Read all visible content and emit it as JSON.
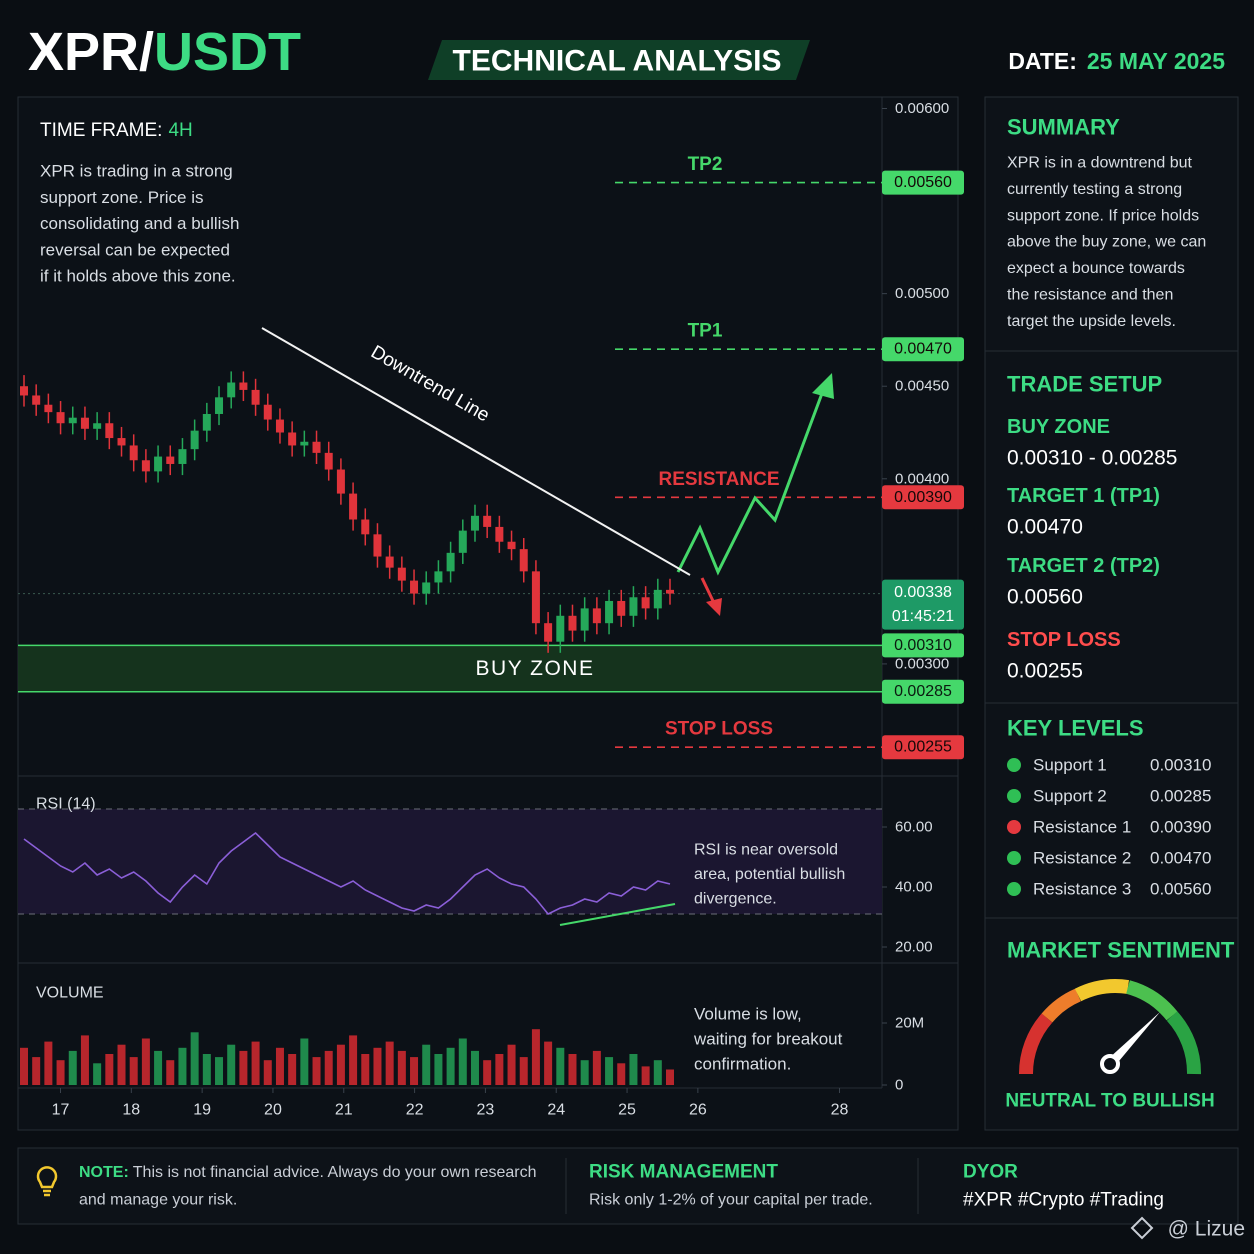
{
  "header": {
    "title_base": "XPR/",
    "title_quote": "USDT",
    "badge": "TECHNICAL ANALYSIS",
    "date_label": "DATE:",
    "date": "25 MAY 2025"
  },
  "info": {
    "timeframe_label": "TIME FRAME:",
    "timeframe": "4H",
    "lines": [
      "XPR is trading in a strong",
      "support zone. Price is",
      "consolidating and a bullish",
      "reversal can be expected",
      "if it holds above this zone."
    ]
  },
  "chart_data": [
    {
      "type": "candlestick",
      "open": [
        0.0045,
        0.00445,
        0.0044,
        0.00436,
        0.0043,
        0.00433,
        0.00427,
        0.0043,
        0.00422,
        0.00418,
        0.0041,
        0.00404,
        0.00412,
        0.00408,
        0.00416,
        0.00426,
        0.00435,
        0.00444,
        0.00452,
        0.00448,
        0.0044,
        0.00432,
        0.00425,
        0.00418,
        0.0042,
        0.00414,
        0.00405,
        0.00392,
        0.00378,
        0.0037,
        0.00358,
        0.00352,
        0.00345,
        0.00338,
        0.00344,
        0.0035,
        0.0036,
        0.00372,
        0.0038,
        0.00374,
        0.00366,
        0.00362,
        0.0035,
        0.00322,
        0.00312,
        0.00326,
        0.00318,
        0.0033,
        0.00322,
        0.00334,
        0.00326,
        0.00336,
        0.0033,
        0.0034
      ],
      "high": [
        0.00456,
        0.00451,
        0.00446,
        0.00442,
        0.00439,
        0.00439,
        0.00436,
        0.00436,
        0.00428,
        0.00424,
        0.00416,
        0.00418,
        0.00418,
        0.00422,
        0.00432,
        0.00441,
        0.0045,
        0.00458,
        0.00458,
        0.00454,
        0.00446,
        0.00438,
        0.00431,
        0.00426,
        0.00426,
        0.0042,
        0.00411,
        0.00398,
        0.00384,
        0.00376,
        0.00364,
        0.00358,
        0.00351,
        0.0035,
        0.00356,
        0.00366,
        0.00378,
        0.00386,
        0.00386,
        0.0038,
        0.00372,
        0.00368,
        0.00356,
        0.00328,
        0.00332,
        0.00332,
        0.00336,
        0.00336,
        0.0034,
        0.0034,
        0.00342,
        0.00342,
        0.00346,
        0.00346
      ],
      "low": [
        0.00439,
        0.00434,
        0.0043,
        0.00424,
        0.00424,
        0.00421,
        0.00421,
        0.00416,
        0.00412,
        0.00404,
        0.00398,
        0.00398,
        0.00402,
        0.00402,
        0.0041,
        0.0042,
        0.00429,
        0.00438,
        0.00442,
        0.00434,
        0.00426,
        0.00419,
        0.00412,
        0.00412,
        0.00408,
        0.00399,
        0.00386,
        0.00372,
        0.00364,
        0.00352,
        0.00346,
        0.00339,
        0.00332,
        0.00332,
        0.00338,
        0.00344,
        0.00354,
        0.00366,
        0.00368,
        0.0036,
        0.00356,
        0.00344,
        0.00316,
        0.00306,
        0.00306,
        0.00312,
        0.00312,
        0.00316,
        0.00316,
        0.0032,
        0.0032,
        0.00324,
        0.00324,
        0.00332
      ],
      "close": [
        0.00445,
        0.0044,
        0.00436,
        0.0043,
        0.00433,
        0.00427,
        0.0043,
        0.00422,
        0.00418,
        0.0041,
        0.00404,
        0.00412,
        0.00408,
        0.00416,
        0.00426,
        0.00435,
        0.00444,
        0.00452,
        0.00448,
        0.0044,
        0.00432,
        0.00425,
        0.00418,
        0.0042,
        0.00414,
        0.00405,
        0.00392,
        0.00378,
        0.0037,
        0.00358,
        0.00352,
        0.00345,
        0.00338,
        0.00344,
        0.0035,
        0.0036,
        0.00372,
        0.0038,
        0.00374,
        0.00366,
        0.00362,
        0.0035,
        0.00322,
        0.00312,
        0.00326,
        0.00318,
        0.0033,
        0.00322,
        0.00334,
        0.00326,
        0.00336,
        0.0033,
        0.0034,
        0.00338
      ],
      "up_color": "#25a85a",
      "down_color": "#e0343b",
      "ylim": [
        0.0024,
        0.0061
      ],
      "yticks": [
        {
          "value": 0.006,
          "label": "0.00600"
        },
        {
          "value": 0.005,
          "label": "0.00500"
        },
        {
          "value": 0.0045,
          "label": "0.00450"
        },
        {
          "value": 0.004,
          "label": "0.00400"
        },
        {
          "value": 0.003,
          "label": "0.00300"
        }
      ],
      "levels": [
        {
          "name": "TP2",
          "value": 0.0056,
          "label": "0.00560",
          "color": "#45d86a"
        },
        {
          "name": "TP1",
          "value": 0.0047,
          "label": "0.00470",
          "color": "#45d86a"
        },
        {
          "name": "RESISTANCE",
          "value": 0.0039,
          "label": "0.00390",
          "color": "#e5393f"
        },
        {
          "name": "STOP LOSS",
          "value": 0.00255,
          "label": "0.00255",
          "color": "#e5393f"
        }
      ],
      "buy_zone": {
        "name": "BUY ZONE",
        "high": 0.0031,
        "high_label": "0.00310",
        "low": 0.00285,
        "low_label": "0.00285",
        "color": "#45d86a"
      },
      "current_price": {
        "value": 0.00338,
        "label": "0.00338",
        "countdown": "01:45:21",
        "color": "#1e9a66"
      },
      "trendline_label": "Downtrend Line"
    },
    {
      "type": "line",
      "title": "RSI (14)",
      "color": "#8b5fd8",
      "values": [
        56,
        53,
        50,
        47,
        45,
        48,
        44,
        46,
        43,
        45,
        42,
        38,
        35,
        40,
        44,
        41,
        48,
        52,
        55,
        58,
        54,
        50,
        48,
        46,
        44,
        42,
        40,
        42,
        39,
        37,
        35,
        33,
        32,
        34,
        33,
        36,
        40,
        44,
        46,
        43,
        41,
        40,
        36,
        31,
        33,
        34,
        36,
        35,
        38,
        37,
        40,
        39,
        42,
        41
      ],
      "band": [
        31,
        66
      ],
      "ylim": [
        15,
        68
      ],
      "yticks": [
        {
          "value": 60,
          "label": "60.00"
        },
        {
          "value": 40,
          "label": "40.00"
        },
        {
          "value": 20,
          "label": "20.00"
        }
      ],
      "note": [
        "RSI is near oversold",
        "area, potential bullish",
        "divergence."
      ]
    },
    {
      "type": "bar",
      "title": "VOLUME",
      "up_color": "#1f8a4c",
      "down_color": "#b8262c",
      "values": [
        12,
        9,
        14,
        8,
        11,
        16,
        7,
        10,
        13,
        9,
        15,
        11,
        8,
        12,
        17,
        10,
        9,
        13,
        11,
        14,
        8,
        12,
        10,
        15,
        9,
        11,
        13,
        16,
        10,
        12,
        14,
        11,
        9,
        13,
        10,
        12,
        15,
        11,
        8,
        10,
        13,
        9,
        18,
        14,
        12,
        10,
        8,
        11,
        9,
        7,
        10,
        6,
        8,
        5
      ],
      "ylim": [
        0,
        24
      ],
      "yticks": [
        {
          "value": 20,
          "label": "20M"
        },
        0
      ],
      "xlim": [
        16.4,
        28.6
      ],
      "xticks": [
        17,
        18,
        19,
        20,
        21,
        22,
        23,
        24,
        25,
        26,
        28
      ],
      "note": [
        "Volume is low,",
        "waiting for breakout",
        "confirmation."
      ]
    }
  ],
  "sidebar": {
    "summary": {
      "title": "SUMMARY",
      "lines": [
        "XPR is in a downtrend but",
        "currently testing a strong",
        "support zone. If price holds",
        "above the buy zone, we can",
        "expect a bounce towards",
        "the resistance and then",
        "target the upside levels."
      ]
    },
    "trade_setup": {
      "title": "TRADE SETUP",
      "items": [
        {
          "label": "BUY ZONE",
          "value": "0.00310 - 0.00285",
          "color": "#3ddc84"
        },
        {
          "label": "TARGET 1 (TP1)",
          "value": "0.00470",
          "color": "#3ddc84"
        },
        {
          "label": "TARGET 2 (TP2)",
          "value": "0.00560",
          "color": "#3ddc84"
        },
        {
          "label": "STOP LOSS",
          "value": "0.00255",
          "color": "#ff4d4d"
        }
      ]
    },
    "key_levels": {
      "title": "KEY LEVELS",
      "rows": [
        {
          "label": "Support 1",
          "value": "0.00310",
          "color": "#2fbf55"
        },
        {
          "label": "Support 2",
          "value": "0.00285",
          "color": "#2fbf55"
        },
        {
          "label": "Resistance 1",
          "value": "0.00390",
          "color": "#e5393f"
        },
        {
          "label": "Resistance 2",
          "value": "0.00470",
          "color": "#2fbf55"
        },
        {
          "label": "Resistance 3",
          "value": "0.00560",
          "color": "#2fbf55"
        }
      ]
    },
    "sentiment": {
      "title": "MARKET SENTIMENT",
      "label": "NEUTRAL TO BULLISH"
    }
  },
  "footer": {
    "note_prefix": "NOTE:",
    "note_lines": [
      "This is not financial advice. Always do your own research",
      "and manage your risk."
    ],
    "risk_title": "RISK MANAGEMENT",
    "risk_text": "Risk only 1-2% of your capital per trade.",
    "dyor_title": "DYOR",
    "dyor_text": "#XPR #Crypto #Trading"
  },
  "watermark": "@ Lizue"
}
